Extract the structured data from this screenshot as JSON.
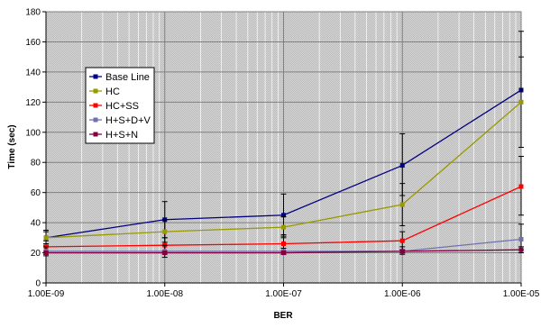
{
  "chart_data": {
    "type": "line",
    "xlabel": "BER",
    "ylabel": "Time (sec)",
    "x": [
      "1.00E-09",
      "1.00E-08",
      "1.00E-07",
      "1.00E-06",
      "1.00E-05"
    ],
    "x_scale": "log",
    "ylim": [
      0,
      180
    ],
    "y_ticks": [
      0,
      20,
      40,
      60,
      80,
      100,
      120,
      140,
      160,
      180
    ],
    "grid": true,
    "legend_position": "left",
    "background": "#c8c8c8",
    "series": [
      {
        "name": "Base Line",
        "color": "#000080",
        "values": [
          30,
          42,
          45,
          78,
          128
        ],
        "error_low": [
          25,
          30,
          32,
          58,
          90
        ],
        "error_high": [
          35,
          54,
          59,
          99,
          167
        ]
      },
      {
        "name": "HC",
        "color": "#999900",
        "values": [
          30,
          34,
          37,
          52,
          120
        ],
        "error_low": [
          26,
          27,
          30,
          38,
          90
        ],
        "error_high": [
          34,
          42,
          44,
          66,
          150
        ]
      },
      {
        "name": "HC+SS",
        "color": "#ff0000",
        "values": [
          24,
          25,
          26,
          28,
          64
        ],
        "error_low": [
          20,
          20,
          21,
          22,
          45
        ],
        "error_high": [
          28,
          30,
          31,
          34,
          84
        ]
      },
      {
        "name": "H+S+D+V",
        "color": "#7070b0",
        "values": [
          21,
          21,
          21,
          21,
          29
        ],
        "error_low": [
          18,
          17,
          19,
          19,
          22
        ],
        "error_high": [
          24,
          25,
          23,
          24,
          39
        ]
      },
      {
        "name": "H+S+N",
        "color": "#800040",
        "values": [
          20,
          20,
          20,
          21,
          22
        ],
        "error_low": [
          19,
          19,
          19,
          20,
          20
        ],
        "error_high": [
          21,
          21,
          21,
          22,
          24
        ]
      }
    ]
  }
}
